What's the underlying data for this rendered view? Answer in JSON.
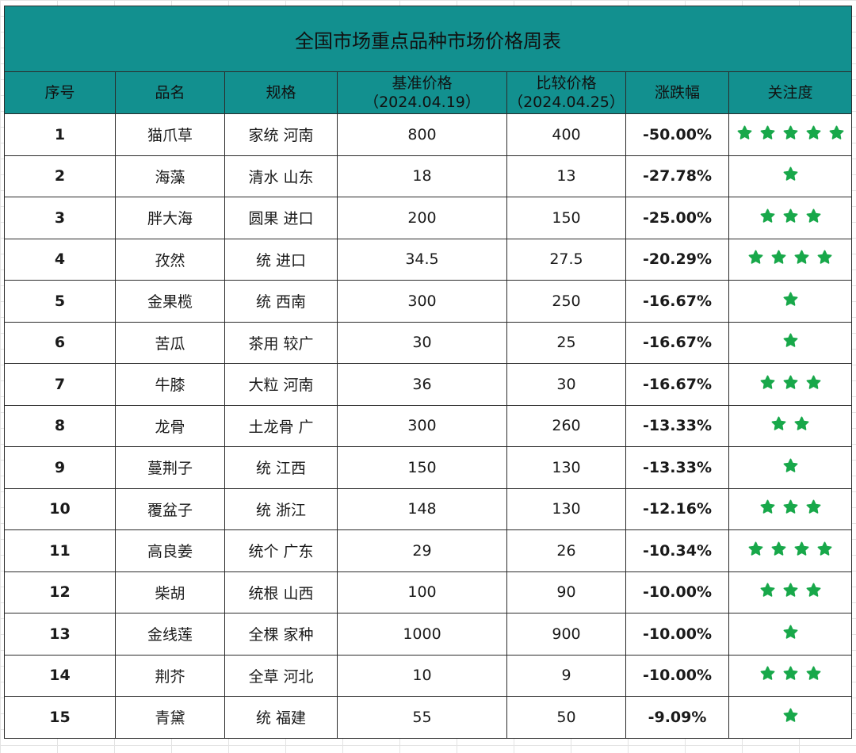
{
  "title": "全国市场重点品种市场价格周表",
  "headers": {
    "index": "序号",
    "name": "品名",
    "spec": "规格",
    "base_price": "基准价格",
    "base_date": "（2024.04.19）",
    "compare_price": "比较价格",
    "compare_date": "（2024.04.25）",
    "change": "涨跌幅",
    "attention": "关注度"
  },
  "colors": {
    "header_bg": "#12908f",
    "change_text": "#15b14c",
    "star": "#18a84a"
  },
  "attention_icon": "star-icon",
  "rows": [
    {
      "index": "1",
      "name": "猫爪草",
      "spec": "家统 河南",
      "base": "800",
      "compare": "400",
      "change": "-50.00%",
      "stars": 5
    },
    {
      "index": "2",
      "name": "海藻",
      "spec": "清水 山东",
      "base": "18",
      "compare": "13",
      "change": "-27.78%",
      "stars": 1
    },
    {
      "index": "3",
      "name": "胖大海",
      "spec": "圆果 进口",
      "base": "200",
      "compare": "150",
      "change": "-25.00%",
      "stars": 3
    },
    {
      "index": "4",
      "name": "孜然",
      "spec": "统 进口",
      "base": "34.5",
      "compare": "27.5",
      "change": "-20.29%",
      "stars": 4
    },
    {
      "index": "5",
      "name": "金果榄",
      "spec": "统 西南",
      "base": "300",
      "compare": "250",
      "change": "-16.67%",
      "stars": 1
    },
    {
      "index": "6",
      "name": "苦瓜",
      "spec": "茶用 较广",
      "base": "30",
      "compare": "25",
      "change": "-16.67%",
      "stars": 1
    },
    {
      "index": "7",
      "name": "牛膝",
      "spec": "大粒 河南",
      "base": "36",
      "compare": "30",
      "change": "-16.67%",
      "stars": 3
    },
    {
      "index": "8",
      "name": "龙骨",
      "spec": "土龙骨 广",
      "base": "300",
      "compare": "260",
      "change": "-13.33%",
      "stars": 2
    },
    {
      "index": "9",
      "name": "蔓荆子",
      "spec": "统 江西",
      "base": "150",
      "compare": "130",
      "change": "-13.33%",
      "stars": 1
    },
    {
      "index": "10",
      "name": "覆盆子",
      "spec": "统 浙江",
      "base": "148",
      "compare": "130",
      "change": "-12.16%",
      "stars": 3
    },
    {
      "index": "11",
      "name": "高良姜",
      "spec": "统个 广东",
      "base": "29",
      "compare": "26",
      "change": "-10.34%",
      "stars": 4
    },
    {
      "index": "12",
      "name": "柴胡",
      "spec": "统根 山西",
      "base": "100",
      "compare": "90",
      "change": "-10.00%",
      "stars": 3
    },
    {
      "index": "13",
      "name": "金线莲",
      "spec": "全棵 家种",
      "base": "1000",
      "compare": "900",
      "change": "-10.00%",
      "stars": 1
    },
    {
      "index": "14",
      "name": "荆芥",
      "spec": "全草 河北",
      "base": "10",
      "compare": "9",
      "change": "-10.00%",
      "stars": 3
    },
    {
      "index": "15",
      "name": "青黛",
      "spec": "统 福建",
      "base": "55",
      "compare": "50",
      "change": "-9.09%",
      "stars": 1
    }
  ]
}
